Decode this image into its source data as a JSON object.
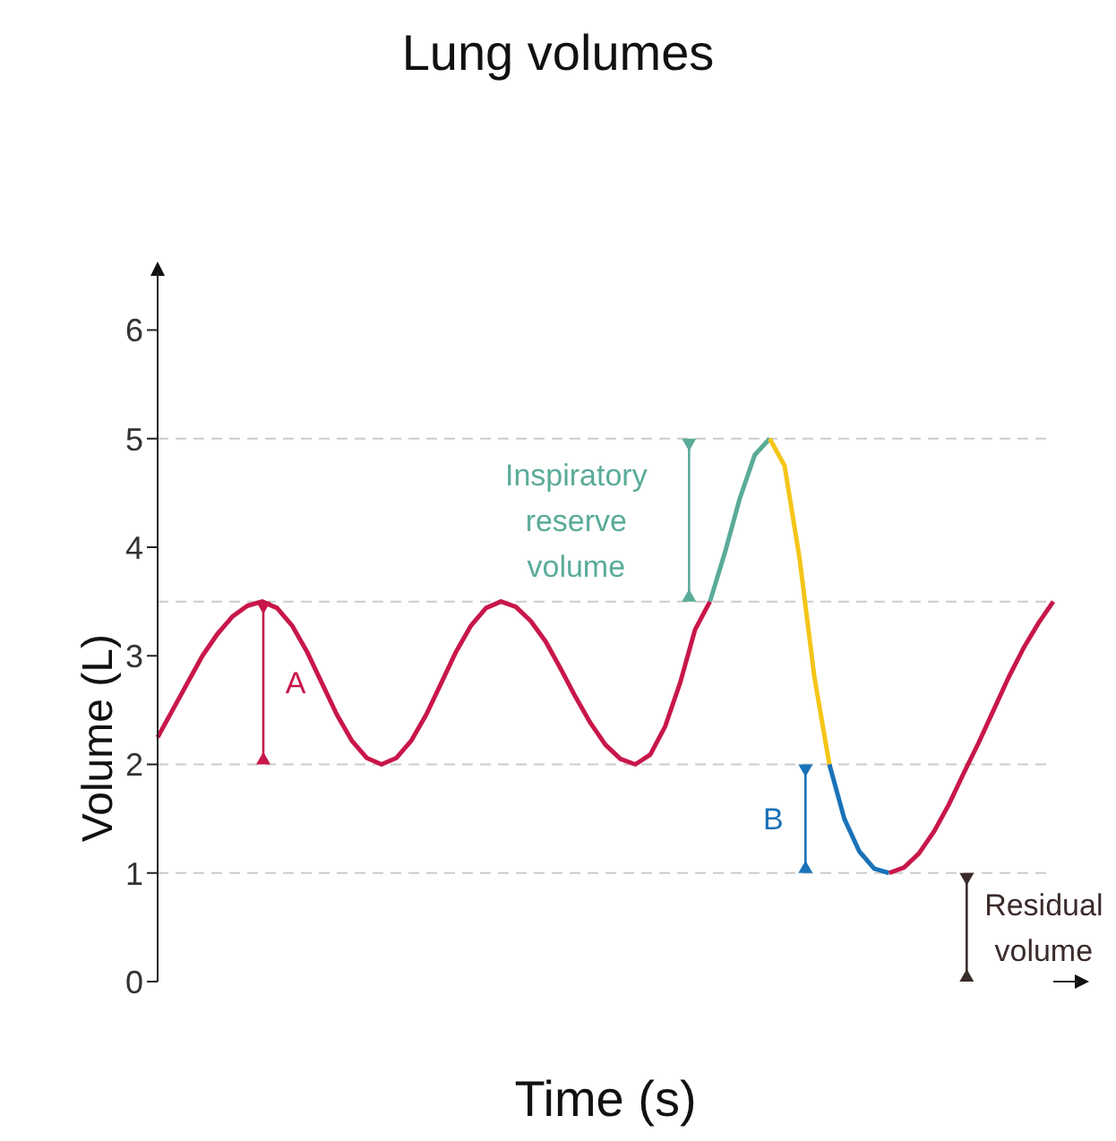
{
  "chart_data": {
    "type": "line",
    "title": "Lung volumes",
    "xlabel": "Time (s)",
    "ylabel": "Volume (L)",
    "categories": [
      null,
      null,
      null,
      null,
      null,
      null,
      null,
      null,
      null,
      null,
      null,
      null,
      null,
      null,
      null,
      null,
      null,
      null,
      null,
      null,
      null,
      null,
      null,
      null,
      null,
      null,
      null,
      null,
      null,
      null,
      null,
      null,
      null,
      null,
      null,
      null,
      null,
      null,
      null,
      null,
      null,
      null,
      null,
      null,
      null,
      null,
      null,
      null,
      null,
      null,
      null,
      null,
      null,
      null,
      null,
      null,
      null,
      null,
      null,
      null,
      null
    ],
    "series": [
      {
        "color": "#c8174a",
        "values": [
          2.25,
          2.5,
          2.75,
          3.0,
          3.2,
          3.36,
          3.46,
          3.5,
          3.44,
          3.28,
          3.04,
          2.75,
          2.46,
          2.22,
          2.06,
          2.0,
          2.06,
          2.22,
          2.46,
          2.75,
          3.04,
          3.28,
          3.44,
          3.5,
          3.45,
          3.32,
          3.13,
          2.88,
          2.62,
          2.38,
          2.18,
          2.05,
          2.0,
          2.09,
          2.35,
          2.75,
          3.24,
          3.5,
          null,
          null,
          null,
          null,
          null,
          null,
          null,
          null,
          null,
          null,
          null,
          null,
          null,
          null,
          null,
          null,
          null,
          null,
          null,
          null,
          null,
          null,
          null
        ]
      },
      {
        "color": "#5aab98",
        "values": [
          null,
          null,
          null,
          null,
          null,
          null,
          null,
          null,
          null,
          null,
          null,
          null,
          null,
          null,
          null,
          null,
          null,
          null,
          null,
          null,
          null,
          null,
          null,
          null,
          null,
          null,
          null,
          null,
          null,
          null,
          null,
          null,
          null,
          null,
          null,
          null,
          null,
          3.5,
          3.95,
          4.45,
          4.85,
          5.0,
          null,
          null,
          null,
          null,
          null,
          null,
          null,
          null,
          null,
          null,
          null,
          null,
          null,
          null,
          null,
          null,
          null,
          null,
          null
        ]
      },
      {
        "color": "#f5c518",
        "values": [
          null,
          null,
          null,
          null,
          null,
          null,
          null,
          null,
          null,
          null,
          null,
          null,
          null,
          null,
          null,
          null,
          null,
          null,
          null,
          null,
          null,
          null,
          null,
          null,
          null,
          null,
          null,
          null,
          null,
          null,
          null,
          null,
          null,
          null,
          null,
          null,
          null,
          null,
          null,
          null,
          null,
          5.0,
          4.75,
          3.9,
          2.8,
          2.0,
          null,
          null,
          null,
          null,
          null,
          null,
          null,
          null,
          null,
          null,
          null,
          null,
          null,
          null,
          null
        ]
      },
      {
        "color": "#1a72b8",
        "values": [
          null,
          null,
          null,
          null,
          null,
          null,
          null,
          null,
          null,
          null,
          null,
          null,
          null,
          null,
          null,
          null,
          null,
          null,
          null,
          null,
          null,
          null,
          null,
          null,
          null,
          null,
          null,
          null,
          null,
          null,
          null,
          null,
          null,
          null,
          null,
          null,
          null,
          null,
          null,
          null,
          null,
          null,
          null,
          null,
          null,
          2.0,
          1.5,
          1.2,
          1.04,
          1.0,
          null,
          null,
          null,
          null,
          null,
          null,
          null,
          null,
          null,
          null,
          null
        ]
      },
      {
        "color": "#c8174a",
        "values": [
          null,
          null,
          null,
          null,
          null,
          null,
          null,
          null,
          null,
          null,
          null,
          null,
          null,
          null,
          null,
          null,
          null,
          null,
          null,
          null,
          null,
          null,
          null,
          null,
          null,
          null,
          null,
          null,
          null,
          null,
          null,
          null,
          null,
          null,
          null,
          null,
          null,
          null,
          null,
          null,
          null,
          null,
          null,
          null,
          null,
          null,
          null,
          null,
          null,
          1.0,
          1.05,
          1.18,
          1.38,
          1.63,
          1.92,
          2.2,
          2.5,
          2.8,
          3.07,
          3.3,
          3.5
        ]
      }
    ],
    "ylim": [
      0,
      6.4
    ],
    "yticks": [
      0,
      1,
      2,
      3,
      4,
      5,
      6
    ],
    "grid": false,
    "marker": "none",
    "line_style": "solid",
    "ref_lines": [
      {
        "axis": "y",
        "value": 5,
        "color": "#cccccc",
        "line_style": "dashed"
      },
      {
        "axis": "y",
        "value": 3.5,
        "color": "#cccccc",
        "line_style": "dashed"
      },
      {
        "axis": "y",
        "value": 2,
        "color": "#cccccc",
        "line_style": "dashed"
      },
      {
        "axis": "y",
        "value": 1,
        "color": "#cccccc",
        "line_style": "dashed"
      }
    ],
    "annotations": [
      "A",
      "Inspiratory reserve volume",
      "B",
      "Residual volume"
    ]
  }
}
